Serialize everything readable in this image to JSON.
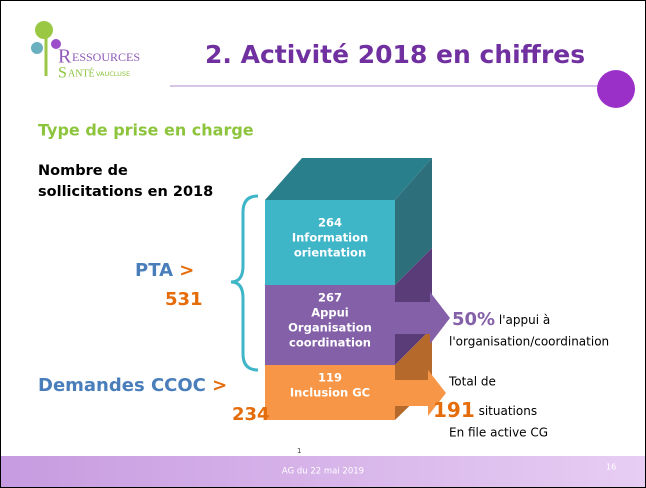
{
  "logo": {
    "r": "R",
    "essources": "ESSOURCES",
    "s": "S",
    "ante": "ANTÉ",
    "vaucluse": "VAUCLUSE"
  },
  "header": {
    "title": "2. Activité 2018 en chiffres"
  },
  "subtitle": "Type de prise en charge",
  "count_label": [
    "Nombre de",
    "sollicitations en 2018"
  ],
  "blocks": [
    {
      "number": "264",
      "lines": [
        "Information",
        "orientation"
      ]
    },
    {
      "number": "267",
      "lines": [
        "Appui",
        "Organisation",
        "coordination"
      ]
    },
    {
      "number": "119",
      "lines": [
        "Inclusion GC"
      ]
    }
  ],
  "groups": [
    {
      "label": "PTA",
      "arrow": ">",
      "total": "531"
    },
    {
      "label": "Demandes CCOC",
      "arrow": ">",
      "total": "234"
    }
  ],
  "notes": {
    "appui": {
      "percent": "50%",
      "text": "l'appui à",
      "line2": "l'organisation/coordination"
    },
    "total": {
      "line1": "Total de",
      "number": "191",
      "word": "situations",
      "line3": "En file active CG"
    }
  },
  "footer": {
    "marker": "1",
    "text": "AG du 22 mai 2019",
    "page": "16"
  }
}
